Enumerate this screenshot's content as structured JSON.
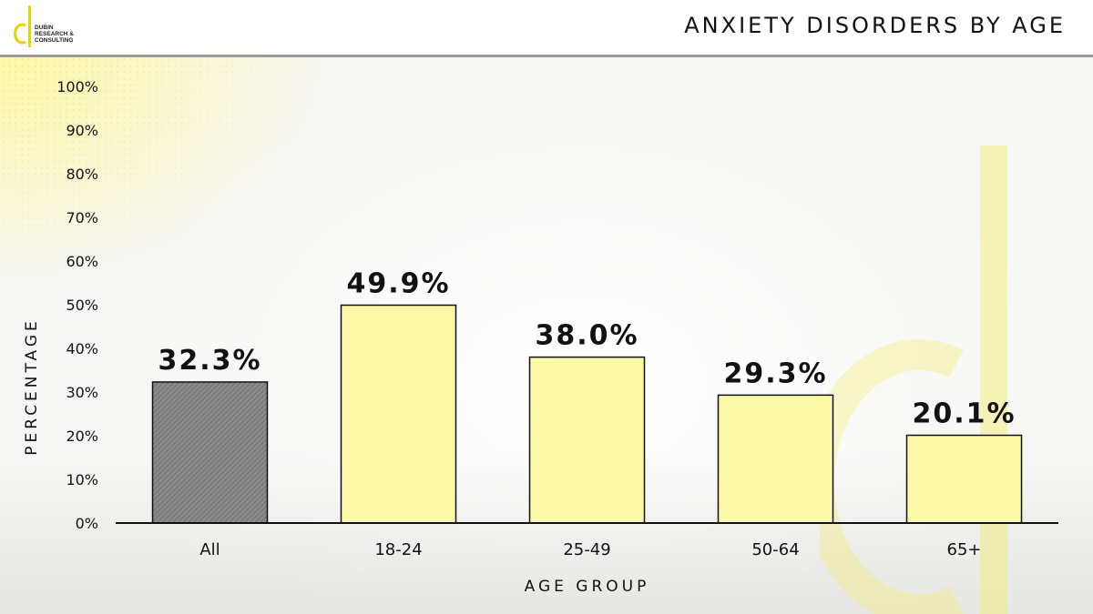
{
  "header": {
    "title": "ANXIETY DISORDERS BY AGE",
    "logo_lines": [
      "DUBIN",
      "RESEARCH &",
      "CONSULTING"
    ]
  },
  "colors": {
    "highlight_bar": "#7a7a7a",
    "bar": "#fbf8a8",
    "accent": "#f2ea2a"
  },
  "chart_data": {
    "type": "bar",
    "title": "ANXIETY DISORDERS BY AGE",
    "xlabel": "AGE GROUP",
    "ylabel": "PERCENTAGE",
    "categories": [
      "All",
      "18-24",
      "25-49",
      "50-64",
      "65+"
    ],
    "values": [
      32.3,
      49.9,
      38.0,
      29.3,
      20.1
    ],
    "value_labels": [
      "32.3%",
      "49.9%",
      "38.0%",
      "29.3%",
      "20.1%"
    ],
    "y_ticks": [
      "0%",
      "10%",
      "20%",
      "30%",
      "40%",
      "50%",
      "60%",
      "70%",
      "80%",
      "90%",
      "100%"
    ],
    "ylim": [
      0,
      100
    ],
    "grid": false,
    "legend": "none"
  }
}
